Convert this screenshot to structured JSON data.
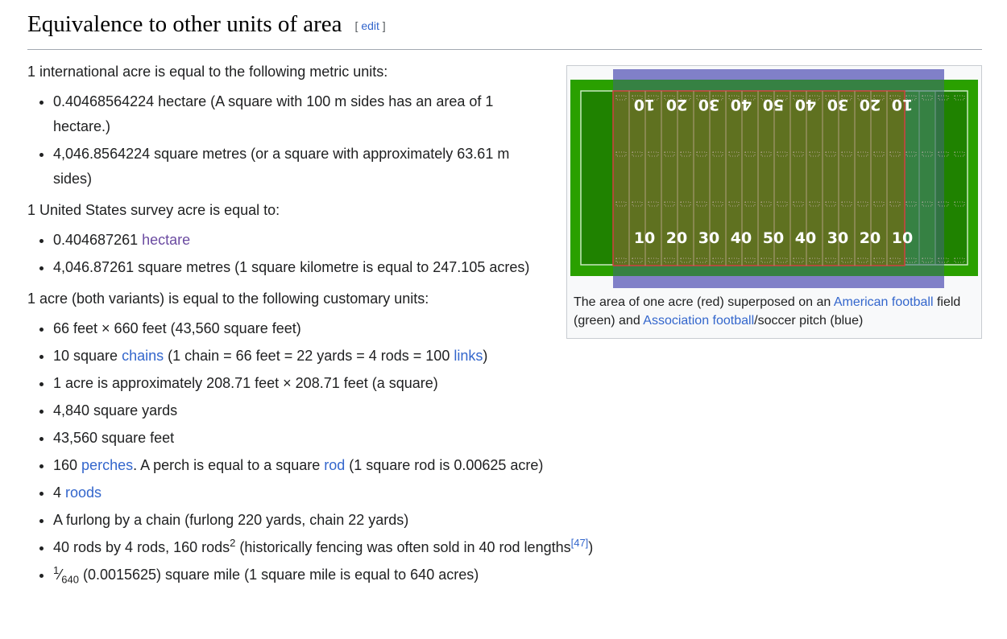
{
  "heading": {
    "title": "Equivalence to other units of area",
    "edit_open": "[ ",
    "edit": "edit",
    "edit_close": " ]"
  },
  "intro_metric": "1 international acre is equal to the following metric units:",
  "metric_items": [
    "0.40468564224 hectare (A square with 100 m sides has an area of 1 hectare.)",
    "4,046.8564224 square metres (or a square with approximately 63.61 m sides)"
  ],
  "intro_us": "1 United States survey acre is equal to:",
  "us_items": {
    "i0_pre": "0.404687261 ",
    "i0_link": "hectare",
    "i1": "4,046.87261 square metres (1 square kilometre is equal to 247.105 acres)"
  },
  "intro_customary": "1 acre (both variants) is equal to the following customary units:",
  "customary": {
    "c0": "66 feet × 660 feet (43,560 square feet)",
    "c1_pre": "10 square ",
    "c1_link1": "chains",
    "c1_mid": " (1 chain = 66 feet = 22 yards = 4 rods = 100 ",
    "c1_link2": "links",
    "c1_post": ")",
    "c2": "1 acre is approximately 208.71 feet × 208.71 feet (a square)",
    "c3": "4,840 square yards",
    "c4": "43,560 square feet",
    "c5_pre": "160 ",
    "c5_link1": "perches",
    "c5_mid": ". A perch is equal to a square ",
    "c5_link2": "rod",
    "c5_post": " (1 square rod is 0.00625 acre)",
    "c6_pre": "4 ",
    "c6_link": "roods",
    "c7": "A furlong by a chain (furlong 220 yards, chain 22 yards)",
    "c8_pre": "40 rods by 4 rods, 160 rods",
    "c8_sup": "2",
    "c8_mid": " (historically fencing was often sold in 40 rod lengths",
    "c8_ref": "[47]",
    "c8_post": ")",
    "c9_num": "1",
    "c9_slash": "⁄",
    "c9_den": "640",
    "c9_post": " (0.0015625) square mile (1 square mile is equal to 640 acres)"
  },
  "figure": {
    "caption_pre": "The area of one acre (red) superposed on an ",
    "caption_link1": "American football",
    "caption_mid": " field (green) and ",
    "caption_link2": "Association football",
    "caption_post": "/soccer pitch (blue)",
    "yard_numbers": [
      "10",
      "20",
      "30",
      "40",
      "50",
      "40",
      "30",
      "20",
      "10"
    ],
    "colors": {
      "field": "#2aa000",
      "endzone": "#1f8200",
      "acre": "#5f7120",
      "acre_border": "#d04040",
      "pitch": "#8080c8",
      "overlap": "#40687a"
    }
  }
}
